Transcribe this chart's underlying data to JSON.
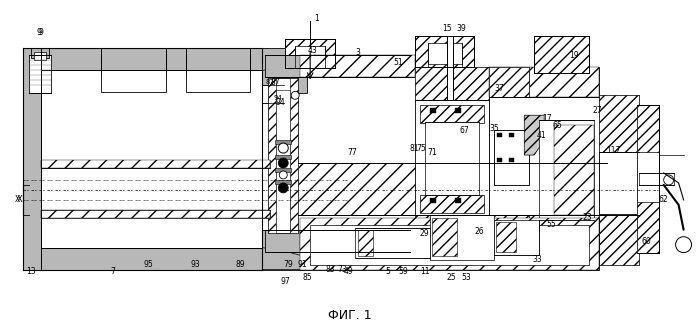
{
  "caption": "ФИГ. 1",
  "bg_color": "#ffffff",
  "fig_width": 6.99,
  "fig_height": 3.3,
  "dpi": 100,
  "dot_fill": "#c8c8c8",
  "hatch_fill": "#aaaaaa",
  "line_color": "#000000"
}
